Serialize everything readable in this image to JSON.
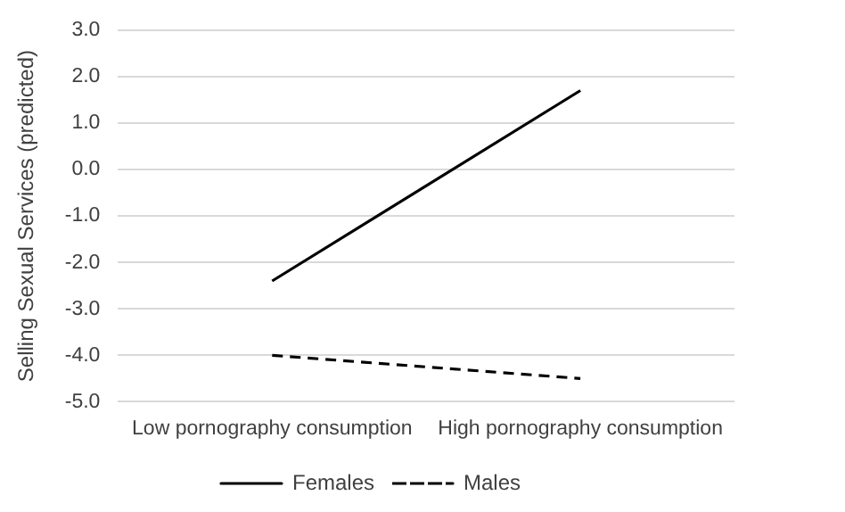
{
  "chart_data": {
    "type": "line",
    "ylabel": "Selling Sexual Services (predicted)",
    "categories": [
      "Low pornography consumption",
      "High pornography consumption"
    ],
    "series": [
      {
        "name": "Females",
        "color": "#000000",
        "values": [
          -2.4,
          1.7
        ],
        "line_style": "solid"
      },
      {
        "name": "Males",
        "color": "#000000",
        "values": [
          -4.0,
          -4.5
        ],
        "line_style": "dashed"
      }
    ],
    "ylim": [
      -5,
      3
    ],
    "yticks": [
      {
        "value": 3,
        "label": "3.0"
      },
      {
        "value": 2,
        "label": "2.0"
      },
      {
        "value": 1,
        "label": "1.0"
      },
      {
        "value": 0,
        "label": "0.0"
      },
      {
        "value": -1,
        "label": "-1.0"
      },
      {
        "value": -2,
        "label": "-2.0"
      },
      {
        "value": -3,
        "label": "-3.0"
      },
      {
        "value": -4,
        "label": "-4.0"
      },
      {
        "value": -5,
        "label": "-5.0"
      }
    ],
    "grid": "y",
    "legend": "bottom",
    "marker": "none"
  }
}
